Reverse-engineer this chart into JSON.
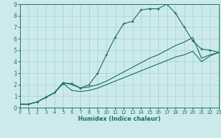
{
  "xlabel": "Humidex (Indice chaleur)",
  "bg_color": "#cceaec",
  "grid_color": "#aad4d6",
  "line_color": "#1a7060",
  "xlim": [
    0,
    23
  ],
  "ylim": [
    0,
    9
  ],
  "xtick_labels": [
    "0",
    "1",
    "2",
    "3",
    "4",
    "5",
    "6",
    "7",
    "8",
    "9",
    "10",
    "11",
    "12",
    "13",
    "14",
    "15",
    "16",
    "17",
    "18",
    "19",
    "20",
    "21",
    "22",
    "23"
  ],
  "xtick_vals": [
    0,
    1,
    2,
    3,
    4,
    5,
    6,
    7,
    8,
    9,
    10,
    11,
    12,
    13,
    14,
    15,
    16,
    17,
    18,
    19,
    20,
    21,
    22,
    23
  ],
  "ytick_vals": [
    0,
    1,
    2,
    3,
    4,
    5,
    6,
    7,
    8,
    9
  ],
  "curve1_x": [
    0,
    1,
    2,
    3,
    4,
    5,
    6,
    7,
    8,
    9,
    10,
    11,
    12,
    13,
    14,
    15,
    16,
    17,
    18,
    19,
    20,
    21,
    22,
    23
  ],
  "curve1_y": [
    0.3,
    0.3,
    0.5,
    0.9,
    1.3,
    2.1,
    2.1,
    1.7,
    2.0,
    3.0,
    4.6,
    6.1,
    7.3,
    7.5,
    8.5,
    8.6,
    8.6,
    9.0,
    8.2,
    7.0,
    5.8,
    5.1,
    5.0,
    4.8
  ],
  "line2_x": [
    0,
    1,
    2,
    3,
    4,
    5,
    6,
    7,
    8,
    9,
    10,
    11,
    12,
    13,
    14,
    15,
    16,
    17,
    18,
    19,
    20,
    21,
    22,
    23
  ],
  "line2_y": [
    0.3,
    0.3,
    0.5,
    0.9,
    1.3,
    2.2,
    2.0,
    1.7,
    1.8,
    2.0,
    2.3,
    2.7,
    3.1,
    3.5,
    3.9,
    4.3,
    4.6,
    5.0,
    5.4,
    5.7,
    6.1,
    4.3,
    4.6,
    4.8
  ],
  "line3_x": [
    0,
    1,
    2,
    3,
    4,
    5,
    6,
    7,
    8,
    9,
    10,
    11,
    12,
    13,
    14,
    15,
    16,
    17,
    18,
    19,
    20,
    21,
    22,
    23
  ],
  "line3_y": [
    0.3,
    0.3,
    0.5,
    0.9,
    1.3,
    2.1,
    1.5,
    1.4,
    1.5,
    1.7,
    2.0,
    2.3,
    2.6,
    2.9,
    3.2,
    3.5,
    3.8,
    4.1,
    4.4,
    4.6,
    4.9,
    4.0,
    4.5,
    4.8
  ]
}
